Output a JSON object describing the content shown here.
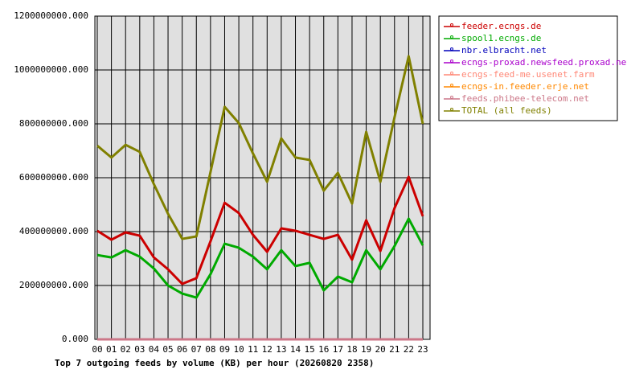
{
  "chart_data": {
    "type": "line",
    "title": "Top 7 outgoing feeds by volume (KB) per hour (20260820 2358)",
    "categories": [
      "00",
      "01",
      "02",
      "03",
      "04",
      "05",
      "06",
      "07",
      "08",
      "09",
      "10",
      "11",
      "12",
      "13",
      "14",
      "15",
      "16",
      "17",
      "18",
      "19",
      "20",
      "21",
      "22",
      "23"
    ],
    "series": [
      {
        "name": "feeder.ecngs.de",
        "color": "#cc0000",
        "values": [
          403000000,
          370000000,
          397000000,
          385000000,
          304000000,
          260000000,
          206000000,
          227000000,
          364000000,
          507000000,
          469000000,
          388000000,
          325000000,
          412000000,
          403000000,
          388000000,
          373000000,
          388000000,
          296000000,
          442000000,
          328000000,
          487000000,
          603000000,
          457000000
        ]
      },
      {
        "name": "spool1.ecngs.de",
        "color": "#00aa00",
        "values": [
          313000000,
          304000000,
          331000000,
          307000000,
          263000000,
          200000000,
          170000000,
          155000000,
          242000000,
          355000000,
          340000000,
          307000000,
          260000000,
          331000000,
          272000000,
          284000000,
          182000000,
          233000000,
          212000000,
          331000000,
          260000000,
          346000000,
          448000000,
          349000000
        ]
      },
      {
        "name": "nbr.elbracht.net",
        "color": "#0000bb",
        "values": [
          0,
          0,
          0,
          0,
          0,
          0,
          0,
          0,
          0,
          0,
          0,
          0,
          0,
          0,
          0,
          0,
          0,
          0,
          0,
          0,
          0,
          0,
          0,
          0
        ]
      },
      {
        "name": "ecngs-proxad.newsfeed.proxad.net",
        "color": "#aa00cc",
        "values": [
          0,
          0,
          0,
          0,
          0,
          0,
          0,
          0,
          0,
          0,
          0,
          0,
          0,
          0,
          0,
          0,
          0,
          0,
          0,
          0,
          0,
          0,
          0,
          0
        ]
      },
      {
        "name": "ecngs-feed-me.usenet.farm",
        "color": "#ff8877",
        "values": [
          0,
          0,
          0,
          0,
          0,
          0,
          0,
          0,
          0,
          0,
          0,
          0,
          0,
          0,
          0,
          0,
          0,
          0,
          0,
          0,
          0,
          0,
          0,
          0
        ]
      },
      {
        "name": "ecngs-in.feeder.erje.net",
        "color": "#ff8800",
        "values": [
          0,
          0,
          0,
          0,
          0,
          0,
          0,
          0,
          0,
          0,
          0,
          0,
          0,
          0,
          0,
          0,
          0,
          0,
          0,
          0,
          0,
          0,
          0,
          0
        ]
      },
      {
        "name": "feeds.phibee-telecom.net",
        "color": "#cc7788",
        "values": [
          0,
          0,
          0,
          0,
          0,
          0,
          0,
          0,
          0,
          0,
          0,
          0,
          0,
          0,
          0,
          0,
          0,
          0,
          0,
          0,
          0,
          0,
          0,
          0
        ]
      },
      {
        "name": "TOTAL (all feeds)",
        "color": "#808000",
        "values": [
          719000000,
          675000000,
          722000000,
          696000000,
          576000000,
          466000000,
          373000000,
          382000000,
          621000000,
          863000000,
          803000000,
          690000000,
          585000000,
          746000000,
          675000000,
          666000000,
          552000000,
          618000000,
          504000000,
          770000000,
          585000000,
          824000000,
          1051000000,
          800000000
        ]
      }
    ],
    "ylim": [
      0,
      1200000000
    ],
    "yticks": [
      {
        "value": 0,
        "label": "0.000"
      },
      {
        "value": 200000000,
        "label": "200000000.000"
      },
      {
        "value": 400000000,
        "label": "400000000.000"
      },
      {
        "value": 600000000,
        "label": "600000000.000"
      },
      {
        "value": 800000000,
        "label": "800000000.000"
      },
      {
        "value": 1000000000,
        "label": "1000000000.000"
      },
      {
        "value": 1200000000,
        "label": "1200000000.000"
      }
    ],
    "grid": true
  }
}
